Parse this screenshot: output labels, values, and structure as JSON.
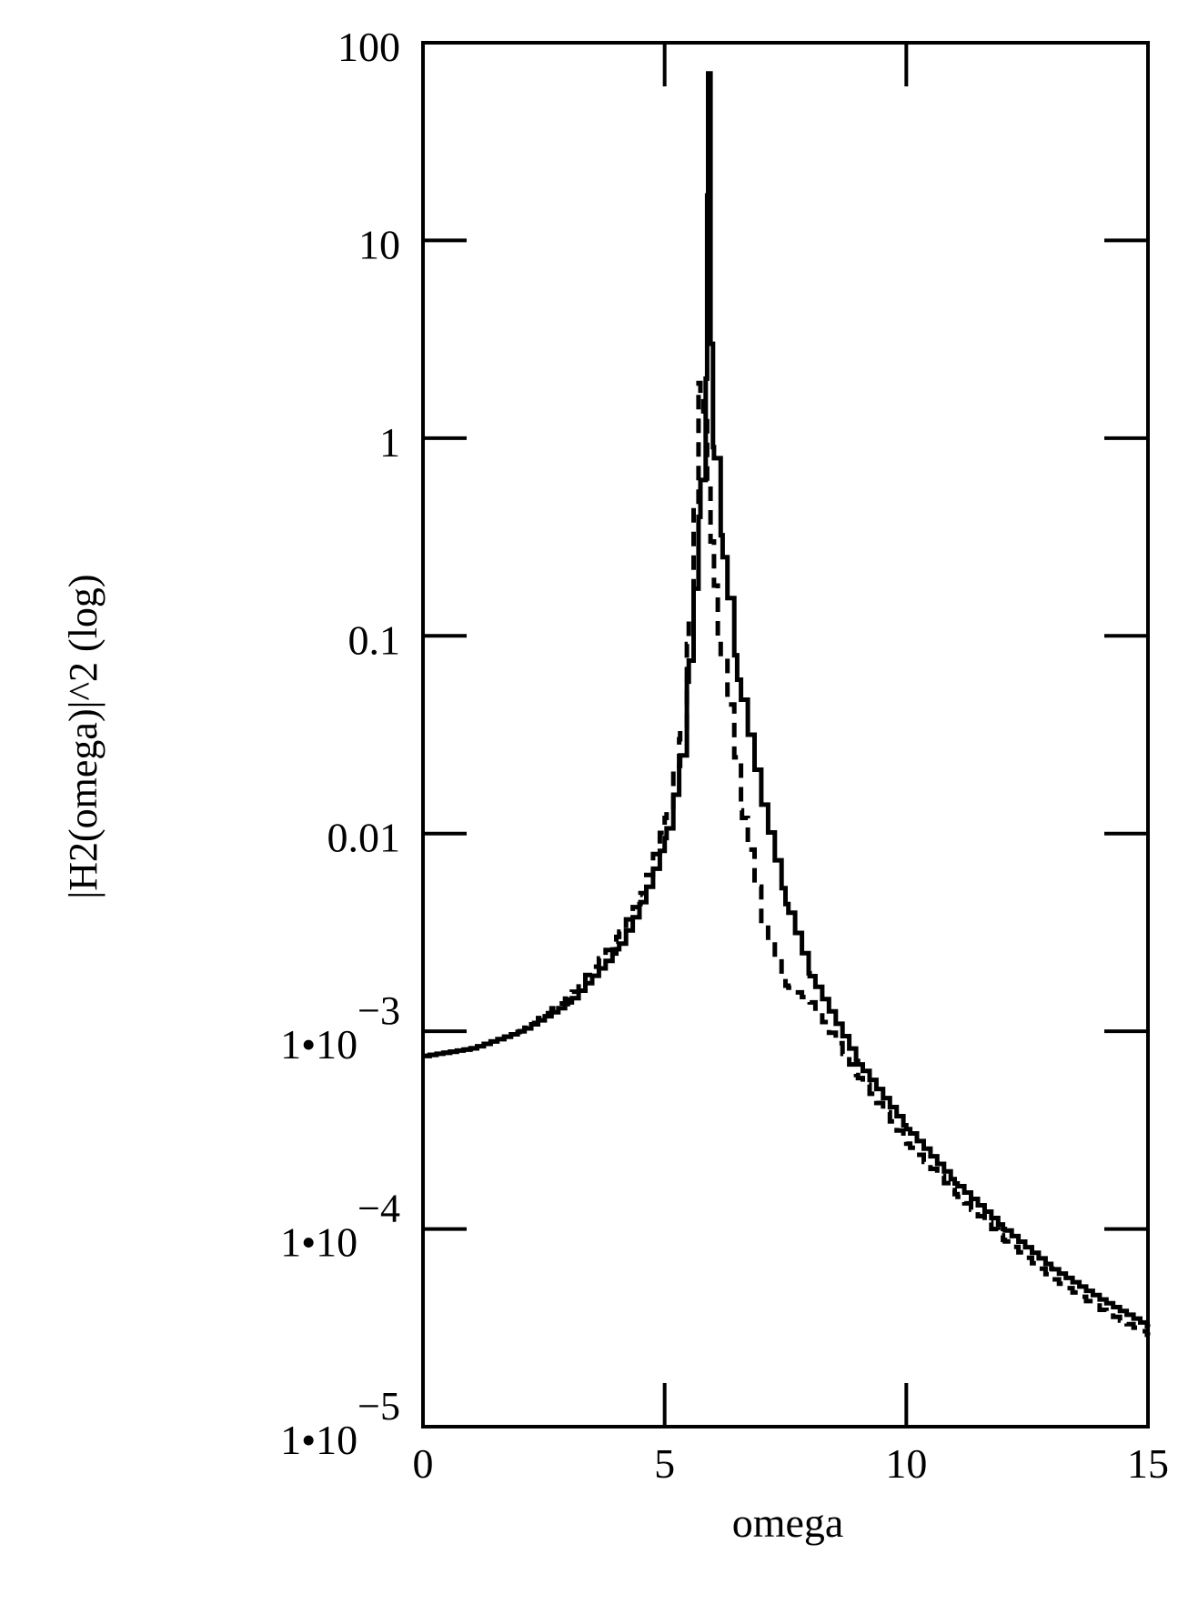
{
  "chart_data": {
    "type": "line",
    "title": "",
    "xlabel": "omega",
    "ylabel": "|H2(omega)|^2 (log)",
    "x_scale": "linear",
    "y_scale": "log",
    "xlim": [
      0,
      15
    ],
    "ylim": [
      1e-05,
      100
    ],
    "grid": false,
    "legend": "none",
    "colors": {
      "line": "#000000",
      "background": "#ffffff"
    },
    "x_ticks": [
      {
        "value": 0,
        "label": "0"
      },
      {
        "value": 5,
        "label": "5"
      },
      {
        "value": 10,
        "label": "10"
      },
      {
        "value": 15,
        "label": "15"
      }
    ],
    "y_ticks": [
      {
        "value": 100,
        "mant": "100",
        "exp": ""
      },
      {
        "value": 10,
        "mant": "10",
        "exp": ""
      },
      {
        "value": 1,
        "mant": "1",
        "exp": ""
      },
      {
        "value": 0.1,
        "mant": "0.1",
        "exp": ""
      },
      {
        "value": 0.01,
        "mant": "0.01",
        "exp": ""
      },
      {
        "value": 0.001,
        "mant": "1•10",
        "exp": "−3"
      },
      {
        "value": 0.0001,
        "mant": "1•10",
        "exp": "−4"
      },
      {
        "value": 1e-05,
        "mant": "1•10",
        "exp": "−5"
      }
    ],
    "series": [
      {
        "style": "solid",
        "x": [
          0,
          1,
          2,
          3,
          4,
          4.5,
          5,
          5.3,
          5.5,
          5.7,
          5.85,
          5.9,
          5.95,
          6.0,
          6.2,
          6.5,
          7,
          7.5,
          8,
          9,
          10,
          11,
          12,
          13,
          14,
          15
        ],
        "y": [
          0.00075,
          0.00082,
          0.001,
          0.0014,
          0.0026,
          0.0045,
          0.0095,
          0.022,
          0.075,
          0.4,
          2.0,
          70,
          3.0,
          0.9,
          0.25,
          0.06,
          0.014,
          0.0044,
          0.0019,
          0.00068,
          0.00032,
          0.00017,
          0.0001,
          6.3e-05,
          4.4e-05,
          3.2e-05
        ]
      },
      {
        "style": "dashed",
        "x": [
          0,
          1,
          2,
          3,
          4,
          4.5,
          5,
          5.3,
          5.5,
          5.7,
          5.8,
          5.95,
          6.1,
          6.3,
          6.6,
          7,
          7.5,
          8,
          9,
          10,
          11,
          12,
          13,
          14,
          15
        ],
        "y": [
          0.00075,
          0.00082,
          0.001,
          0.0015,
          0.003,
          0.005,
          0.012,
          0.03,
          0.12,
          1.9,
          1.3,
          0.3,
          0.1,
          0.045,
          0.012,
          0.0035,
          0.0017,
          0.0014,
          0.00058,
          0.00027,
          0.00015,
          8.8e-05,
          5.6e-05,
          3.9e-05,
          2.9e-05
        ]
      }
    ]
  }
}
